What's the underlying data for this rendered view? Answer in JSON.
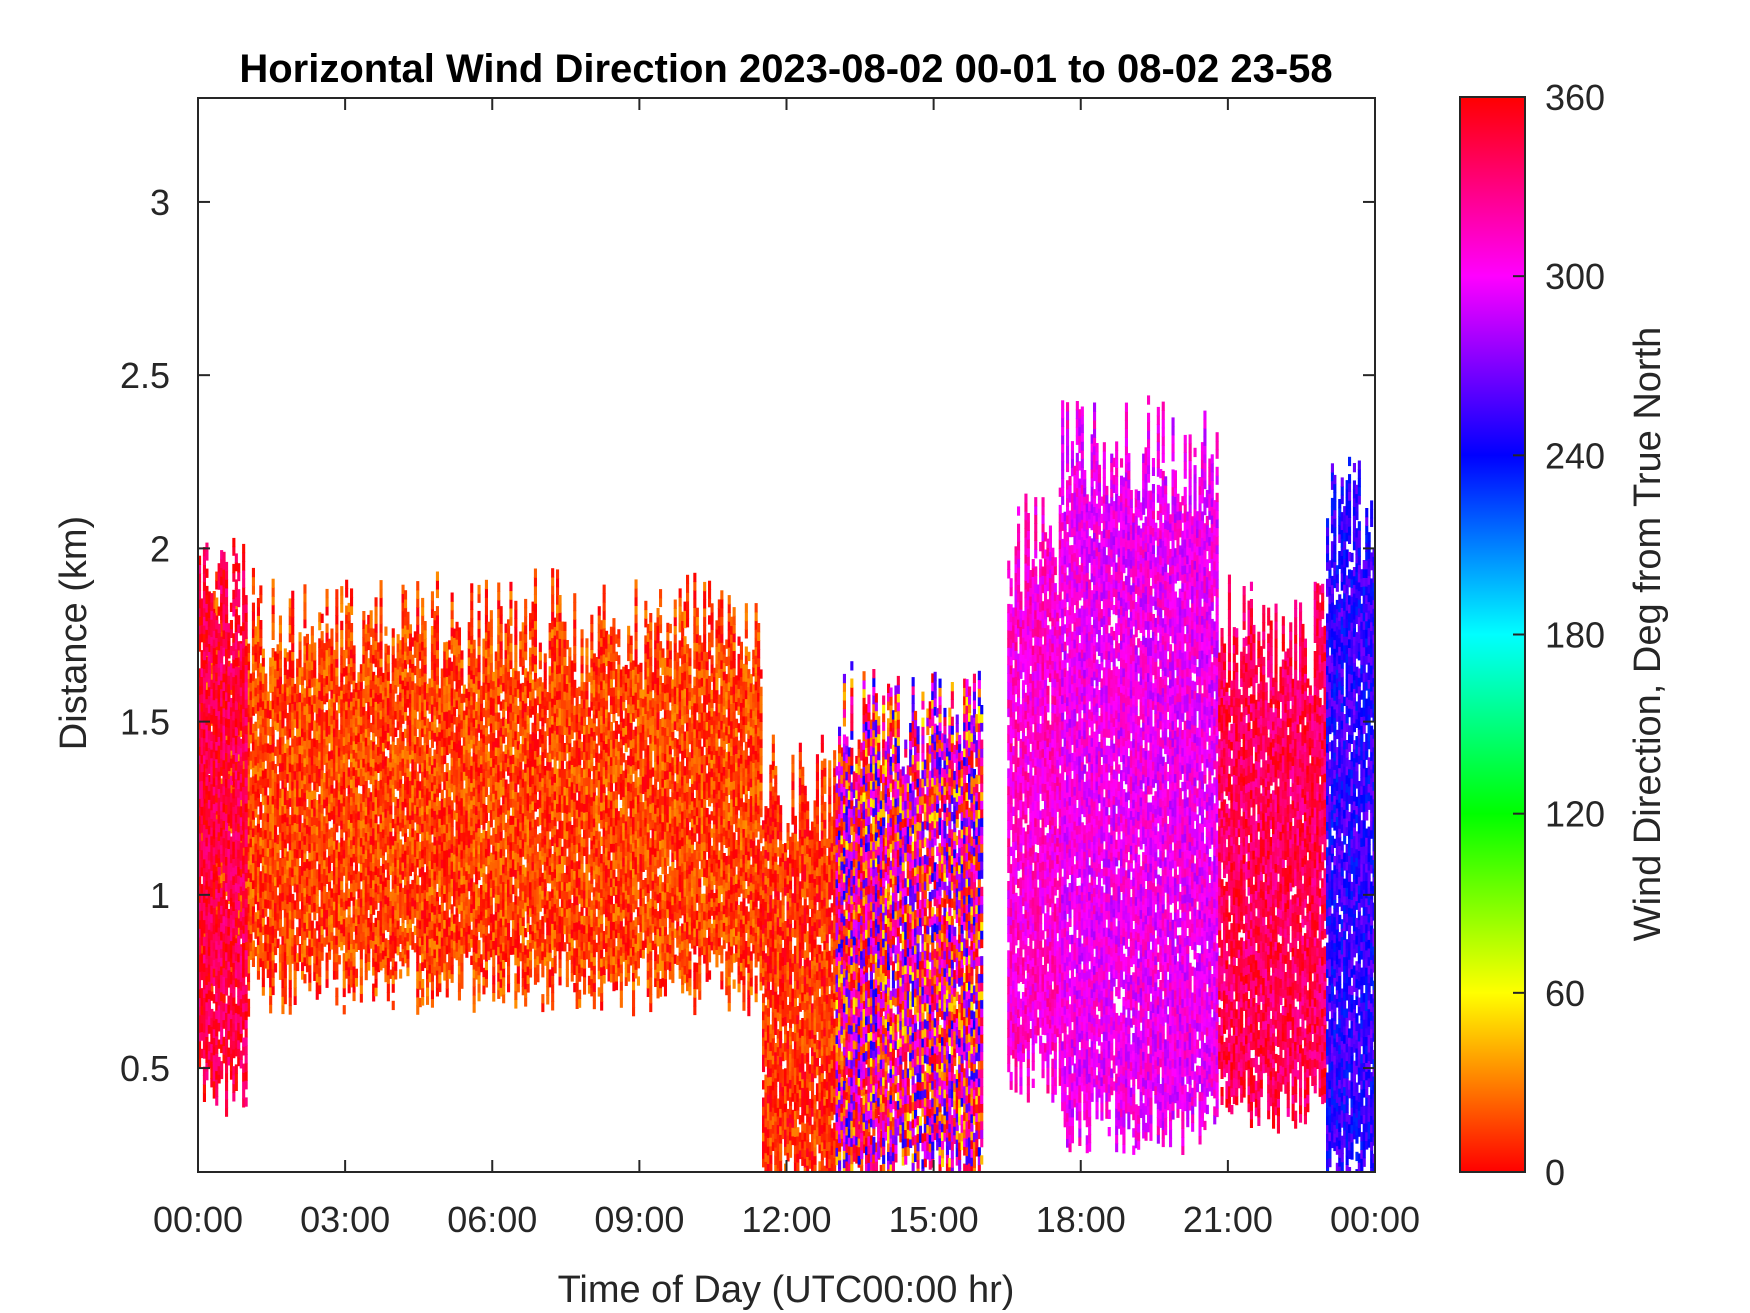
{
  "chart_data": {
    "type": "heatmap",
    "title": "Horizontal Wind Direction 2023-08-02 00-01 to 08-02 23-58",
    "xlabel": "Time of Day (UTC00:00 hr)",
    "ylabel": "Distance (km)",
    "colorbar_label": "Wind Direction, Deg from True North",
    "xlim": [
      0,
      24
    ],
    "ylim": [
      0.2,
      3.3
    ],
    "x_ticks": [
      {
        "value": 0,
        "label": "00:00"
      },
      {
        "value": 3,
        "label": "03:00"
      },
      {
        "value": 6,
        "label": "06:00"
      },
      {
        "value": 9,
        "label": "09:00"
      },
      {
        "value": 12,
        "label": "12:00"
      },
      {
        "value": 15,
        "label": "15:00"
      },
      {
        "value": 18,
        "label": "18:00"
      },
      {
        "value": 21,
        "label": "21:00"
      },
      {
        "value": 24,
        "label": "00:00"
      }
    ],
    "y_ticks": [
      {
        "value": 0.5,
        "label": "0.5"
      },
      {
        "value": 1,
        "label": "1"
      },
      {
        "value": 1.5,
        "label": "1.5"
      },
      {
        "value": 2,
        "label": "2"
      },
      {
        "value": 2.5,
        "label": "2.5"
      },
      {
        "value": 3,
        "label": "3"
      }
    ],
    "colorbar": {
      "range": [
        0,
        360
      ],
      "ticks": [
        {
          "value": 0,
          "label": "0"
        },
        {
          "value": 60,
          "label": "60"
        },
        {
          "value": 120,
          "label": "120"
        },
        {
          "value": 180,
          "label": "180"
        },
        {
          "value": 240,
          "label": "240"
        },
        {
          "value": 300,
          "label": "300"
        },
        {
          "value": 360,
          "label": "360"
        }
      ],
      "colormap": "hsv"
    },
    "grid": false,
    "regions": [
      {
        "t_start": 0.0,
        "t_end": 11.5,
        "z_bottom": 0.75,
        "z_top": 1.75,
        "direction_deg": 15,
        "dominant": "red-orange"
      },
      {
        "t_start": 0.0,
        "t_end": 1.0,
        "z_bottom": 0.45,
        "z_top": 1.9,
        "direction_deg": 345,
        "dominant": "red-magenta"
      },
      {
        "t_start": 11.5,
        "t_end": 14.0,
        "z_bottom": 0.2,
        "z_top": 1.3,
        "direction_deg": 10,
        "dominant": "red-orange"
      },
      {
        "t_start": 13.0,
        "t_end": 16.0,
        "z_bottom": 0.2,
        "z_top": 1.5,
        "direction_deg": 330,
        "dominant": "mixed"
      },
      {
        "t_start": 16.5,
        "t_end": 17.6,
        "z_bottom": 0.5,
        "z_top": 2.0,
        "direction_deg": 310,
        "dominant": "magenta"
      },
      {
        "t_start": 17.6,
        "t_end": 20.8,
        "z_bottom": 0.35,
        "z_top": 2.25,
        "direction_deg": 300,
        "dominant": "magenta-violet"
      },
      {
        "t_start": 20.8,
        "t_end": 23.0,
        "z_bottom": 0.4,
        "z_top": 1.75,
        "direction_deg": 340,
        "dominant": "red-magenta"
      },
      {
        "t_start": 23.0,
        "t_end": 24.0,
        "z_bottom": 0.2,
        "z_top": 2.1,
        "direction_deg": 250,
        "dominant": "blue-cyan"
      }
    ]
  }
}
